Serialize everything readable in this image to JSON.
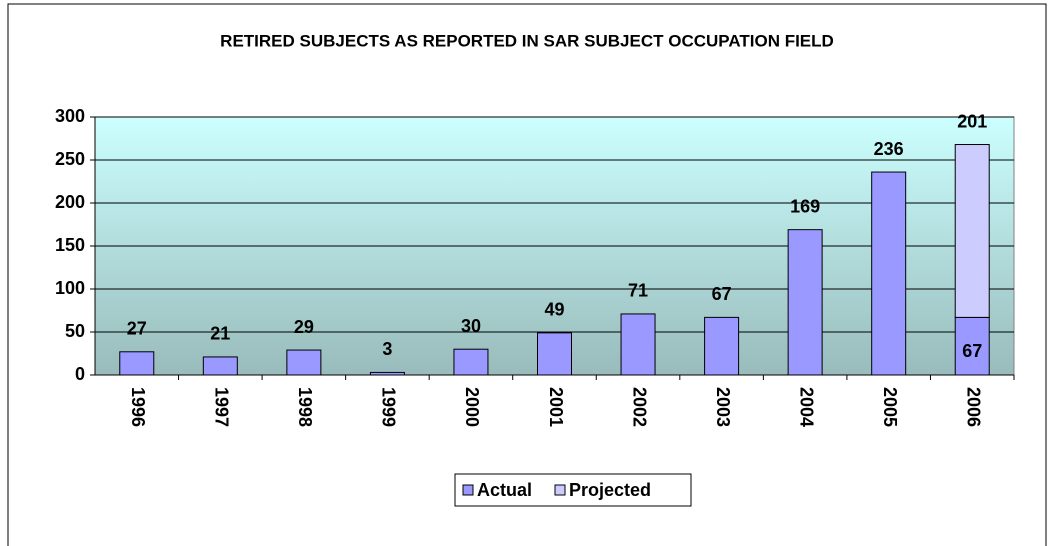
{
  "chart_data": {
    "type": "stacked_bar",
    "title": "RETIRED SUBJECTS AS REPORTED IN SAR SUBJECT OCCUPATION FIELD",
    "categories": [
      "1996",
      "1997",
      "1998",
      "1999",
      "2000",
      "2001",
      "2002",
      "2003",
      "2004",
      "2005",
      "2006"
    ],
    "series": [
      {
        "name": "Actual",
        "color": "#9999ff",
        "values": [
          27,
          21,
          29,
          3,
          30,
          49,
          71,
          67,
          169,
          236,
          67
        ]
      },
      {
        "name": "Projected",
        "color": "#ccccff",
        "values": [
          null,
          null,
          null,
          null,
          null,
          null,
          null,
          null,
          null,
          null,
          201
        ]
      }
    ],
    "ylim": [
      0,
      300
    ],
    "yticks": [
      0,
      50,
      100,
      150,
      200,
      250,
      300
    ],
    "grid": true,
    "legend": "bottom"
  }
}
